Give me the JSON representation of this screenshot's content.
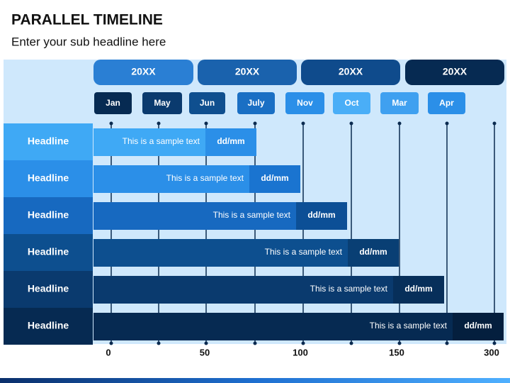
{
  "title": "PARALLEL TIMELINE",
  "subtitle": "Enter your sub headline here",
  "years": [
    "20XX",
    "20XX",
    "20XX",
    "20XX"
  ],
  "months": [
    "Jan",
    "May",
    "Jun",
    "July",
    "Nov",
    "Oct",
    "Mar",
    "Apr"
  ],
  "rows": [
    {
      "headline": "Headline",
      "text": "This is a sample text",
      "date": "dd/mm"
    },
    {
      "headline": "Headline",
      "text": "This is a sample text",
      "date": "dd/mm"
    },
    {
      "headline": "Headline",
      "text": "This is a sample text",
      "date": "dd/mm"
    },
    {
      "headline": "Headline",
      "text": "This is a sample text",
      "date": "dd/mm"
    },
    {
      "headline": "Headline",
      "text": "This is a sample text",
      "date": "dd/mm"
    },
    {
      "headline": "Headline",
      "text": "This is a sample text",
      "date": "dd/mm"
    }
  ],
  "axis_labels": [
    "0",
    "50",
    "100",
    "150",
    "300"
  ]
}
